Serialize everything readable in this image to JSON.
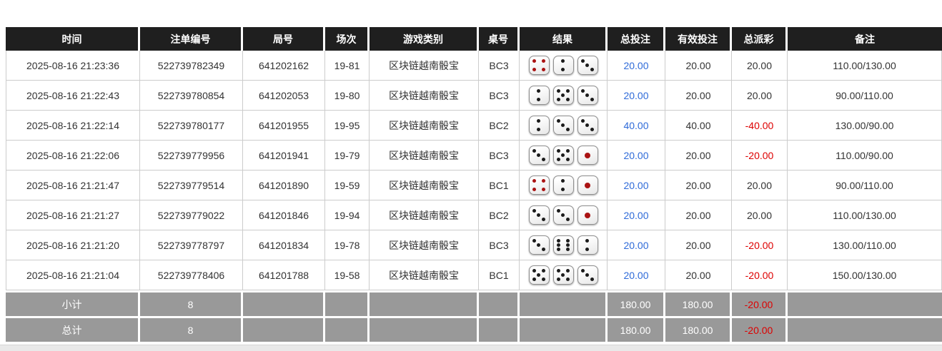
{
  "colors": {
    "header_bg": "#1f1f1f",
    "link_blue": "#2e6ad8",
    "negative_red": "#dd0000",
    "summary_bg": "#999999"
  },
  "dice": {
    "red_values": [
      1,
      4
    ]
  },
  "table": {
    "columns": [
      {
        "key": "time",
        "label": "时间"
      },
      {
        "key": "bet_id",
        "label": "注单编号"
      },
      {
        "key": "round_id",
        "label": "局号"
      },
      {
        "key": "session",
        "label": "场次"
      },
      {
        "key": "game_type",
        "label": "游戏类别"
      },
      {
        "key": "table_no",
        "label": "桌号"
      },
      {
        "key": "result",
        "label": "结果"
      },
      {
        "key": "total_bet",
        "label": "总投注"
      },
      {
        "key": "valid_bet",
        "label": "有效投注"
      },
      {
        "key": "total_payout",
        "label": "总派彩"
      },
      {
        "key": "remark",
        "label": "备注"
      }
    ],
    "rows": [
      {
        "time": "2025-08-16 21:23:36",
        "bet_id": "522739782349",
        "round_id": "641202162",
        "session": "19-81",
        "game_type": "区块链越南骰宝",
        "table_no": "BC3",
        "dice": [
          4,
          2,
          3
        ],
        "total_bet": "20.00",
        "valid_bet": "20.00",
        "total_payout": "20.00",
        "remark": "110.00/130.00"
      },
      {
        "time": "2025-08-16 21:22:43",
        "bet_id": "522739780854",
        "round_id": "641202053",
        "session": "19-80",
        "game_type": "区块链越南骰宝",
        "table_no": "BC3",
        "dice": [
          2,
          5,
          3
        ],
        "total_bet": "20.00",
        "valid_bet": "20.00",
        "total_payout": "20.00",
        "remark": "90.00/110.00"
      },
      {
        "time": "2025-08-16 21:22:14",
        "bet_id": "522739780177",
        "round_id": "641201955",
        "session": "19-95",
        "game_type": "区块链越南骰宝",
        "table_no": "BC2",
        "dice": [
          2,
          3,
          3
        ],
        "total_bet": "40.00",
        "valid_bet": "40.00",
        "total_payout": "-40.00",
        "remark": "130.00/90.00"
      },
      {
        "time": "2025-08-16 21:22:06",
        "bet_id": "522739779956",
        "round_id": "641201941",
        "session": "19-79",
        "game_type": "区块链越南骰宝",
        "table_no": "BC3",
        "dice": [
          3,
          5,
          1
        ],
        "total_bet": "20.00",
        "valid_bet": "20.00",
        "total_payout": "-20.00",
        "remark": "110.00/90.00"
      },
      {
        "time": "2025-08-16 21:21:47",
        "bet_id": "522739779514",
        "round_id": "641201890",
        "session": "19-59",
        "game_type": "区块链越南骰宝",
        "table_no": "BC1",
        "dice": [
          4,
          2,
          1
        ],
        "total_bet": "20.00",
        "valid_bet": "20.00",
        "total_payout": "20.00",
        "remark": "90.00/110.00"
      },
      {
        "time": "2025-08-16 21:21:27",
        "bet_id": "522739779022",
        "round_id": "641201846",
        "session": "19-94",
        "game_type": "区块链越南骰宝",
        "table_no": "BC2",
        "dice": [
          3,
          3,
          1
        ],
        "total_bet": "20.00",
        "valid_bet": "20.00",
        "total_payout": "20.00",
        "remark": "110.00/130.00"
      },
      {
        "time": "2025-08-16 21:21:20",
        "bet_id": "522739778797",
        "round_id": "641201834",
        "session": "19-78",
        "game_type": "区块链越南骰宝",
        "table_no": "BC3",
        "dice": [
          3,
          6,
          2
        ],
        "total_bet": "20.00",
        "valid_bet": "20.00",
        "total_payout": "-20.00",
        "remark": "130.00/110.00"
      },
      {
        "time": "2025-08-16 21:21:04",
        "bet_id": "522739778406",
        "round_id": "641201788",
        "session": "19-58",
        "game_type": "区块链越南骰宝",
        "table_no": "BC1",
        "dice": [
          5,
          5,
          3
        ],
        "total_bet": "20.00",
        "valid_bet": "20.00",
        "total_payout": "-20.00",
        "remark": "150.00/130.00"
      }
    ],
    "summary_rows": [
      {
        "label": "小计",
        "count": "8",
        "total_bet": "180.00",
        "valid_bet": "180.00",
        "total_payout": "-20.00",
        "remark": ""
      },
      {
        "label": "总计",
        "count": "8",
        "total_bet": "180.00",
        "valid_bet": "180.00",
        "total_payout": "-20.00",
        "remark": ""
      }
    ]
  }
}
